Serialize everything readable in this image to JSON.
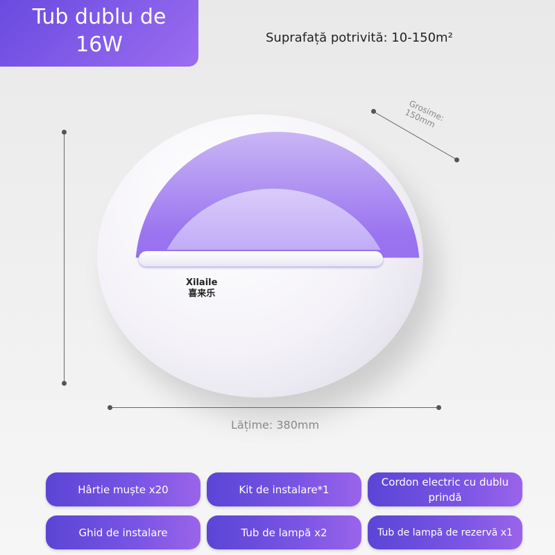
{
  "header": {
    "title_line1": "Tub dublu de",
    "title_line2": "16W",
    "area": "Suprafață potrivită: 10-150m²"
  },
  "product": {
    "brand_latin": "Xilaile",
    "brand_cn": "喜来乐"
  },
  "dimensions": {
    "thickness_label": "Grosime:",
    "thickness_value": "150mm",
    "width_label": "Lățime: 380mm"
  },
  "accessories": [
    "Hârtie muște x20",
    "Kit de instalare*1",
    "Cordon electric cu dublu prindă",
    "Ghid de instalare",
    "Tub de lampă x2",
    "Tub de lampă de rezervă x1"
  ],
  "colors": {
    "accent": "#7a55e4"
  }
}
